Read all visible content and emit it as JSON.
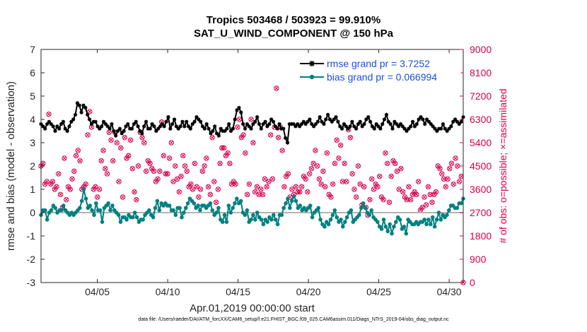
{
  "chart_data": {
    "type": "line",
    "title": "Tropics 503468 / 503923 = 99.910%",
    "subtitle": "SAT_U_WIND_COMPONENT @ 150 hPa",
    "xlabel": "Apr.01,2019 00:00:00 start",
    "ylabel": "rmse and bias (model - observation)",
    "ylabel_right": "# of obs: o=possible; ×=assimilated",
    "footer": "data file: /Users/raeder/DAI/ATM_forcXX/CAM6_setup/f.e21.FHIST_BGC.f09_025.CAM6assim.011/Diags_NTrS_2019-04/obs_diag_output.nc",
    "x_tick_labels": [
      "04/05",
      "04/10",
      "04/15",
      "04/20",
      "04/25",
      "04/30"
    ],
    "x_tick_days": [
      5,
      10,
      15,
      20,
      25,
      30
    ],
    "xlim": [
      1,
      31
    ],
    "ylim": [
      -3,
      7
    ],
    "y_ticks": [
      "-3",
      "-2",
      "-1",
      "0",
      "1",
      "2",
      "3",
      "4",
      "5",
      "6",
      "7"
    ],
    "ylim_right": [
      0,
      9000
    ],
    "y_ticks_right": [
      "0",
      "900",
      "1800",
      "2700",
      "3600",
      "4500",
      "5400",
      "6300",
      "7200",
      "8100",
      "9000"
    ],
    "zero_line": 0,
    "colors": {
      "rmse": "#000000",
      "bias": "#008080",
      "obs": "#d6004f",
      "zero": "#b3b3b3"
    },
    "series": [
      {
        "name": "rmse grand pr = 3.7252",
        "axis": "left",
        "values": [
          3.8,
          3.7,
          3.6,
          3.8,
          3.9,
          3.8,
          3.7,
          3.5,
          3.7,
          3.6,
          3.8,
          3.9,
          3.6,
          3.5,
          3.7,
          3.9,
          4.0,
          4.2,
          4.7,
          4.6,
          4.3,
          4.6,
          4.5,
          4.2,
          4.0,
          3.8,
          3.9,
          3.9,
          3.7,
          3.6,
          3.7,
          3.9,
          3.8,
          3.7,
          3.6,
          3.8,
          3.5,
          3.3,
          3.5,
          3.6,
          3.4,
          3.5,
          3.7,
          3.8,
          3.6,
          3.6,
          3.8,
          3.9,
          3.7,
          3.5,
          3.4,
          3.7,
          3.9,
          3.6,
          3.6,
          3.8,
          3.7,
          3.5,
          3.6,
          3.7,
          3.8,
          3.7,
          3.9,
          4.1,
          3.6,
          3.8,
          4.0,
          3.7,
          3.6,
          3.7,
          3.9,
          3.7,
          3.9,
          3.7,
          3.6,
          3.8,
          3.9,
          4.1,
          4.0,
          3.9,
          3.7,
          3.6,
          3.8,
          3.6,
          3.4,
          3.5,
          3.7,
          3.4,
          3.3,
          3.6,
          3.5,
          3.5,
          3.6,
          3.8,
          3.5,
          3.6,
          4.0,
          4.4,
          4.5,
          4.3,
          3.8,
          3.6,
          3.8,
          3.7,
          3.6,
          3.8,
          3.9,
          4.1,
          3.8,
          3.6,
          3.8,
          3.9,
          3.7,
          3.8,
          4.0,
          3.9,
          3.7,
          3.6,
          3.8,
          3.6,
          3.6,
          3.2,
          3.0,
          3.8,
          3.8,
          3.8,
          3.7,
          3.8,
          3.7,
          3.8,
          3.9,
          3.8,
          3.9,
          4.0,
          3.8,
          3.7,
          3.8,
          3.9,
          4.1,
          3.9,
          3.8,
          4.0,
          4.2,
          4.0,
          3.9,
          4.0,
          4.1,
          3.9,
          3.7,
          3.6,
          3.8,
          3.7,
          3.6,
          3.7,
          3.9,
          3.7,
          3.6,
          3.8,
          3.9,
          3.7,
          3.8,
          4.0,
          4.1,
          3.9,
          3.7,
          3.6,
          3.8,
          3.7,
          3.6,
          3.8,
          4.0,
          4.2,
          3.9,
          3.8,
          3.6,
          3.9,
          3.8,
          3.7,
          3.8,
          3.7,
          3.6,
          3.5,
          3.6,
          3.7,
          3.9,
          3.7,
          3.8,
          4.0,
          4.1,
          4.0,
          3.8,
          4.0,
          3.9,
          3.8,
          3.7,
          3.6,
          3.5,
          3.6,
          3.6,
          3.8,
          3.6,
          3.5,
          3.6,
          3.7,
          3.9,
          4.0,
          3.9,
          3.8,
          3.9,
          4.1
        ]
      },
      {
        "name": "bias grand pr = 0.066994",
        "axis": "left",
        "values": [
          -0.1,
          0.1,
          0.1,
          -0.3,
          0.0,
          0.1,
          0.3,
          0.2,
          0.0,
          0.1,
          0.1,
          0.3,
          0.1,
          0.0,
          -0.1,
          0.0,
          -0.1,
          0.0,
          0.1,
          0.2,
          0.5,
          1.0,
          0.6,
          0.2,
          0.3,
          0.1,
          -0.1,
          0.4,
          0.1,
          0.1,
          -0.4,
          0.2,
          0.3,
          0.4,
          0.1,
          0.3,
          0.1,
          0.0,
          -0.1,
          -0.4,
          -0.2,
          -0.2,
          -0.3,
          -0.1,
          -0.2,
          -0.2,
          0.0,
          -0.2,
          -0.4,
          -0.3,
          -0.3,
          -0.1,
          0.0,
          0.1,
          -0.1,
          -0.2,
          0.2,
          0.5,
          0.1,
          0.4,
          0.3,
          0.4,
          0.3,
          0.3,
          0.1,
          0.1,
          -0.1,
          0.2,
          0.2,
          -0.2,
          0.0,
          0.2,
          0.4,
          0.6,
          0.5,
          0.4,
          0.2,
          0.3,
          0.1,
          0.3,
          0.3,
          0.2,
          0.3,
          0.4,
          0.1,
          -0.1,
          0.0,
          0.2,
          -0.3,
          -0.4,
          -0.1,
          -0.4,
          0.3,
          0.0,
          0.2,
          0.4,
          0.6,
          0.4,
          0.5,
          0.0,
          -0.1,
          0.1,
          -0.4,
          -0.3,
          -0.1,
          -0.3,
          0.0,
          -0.2,
          -0.3,
          -0.5,
          -0.3,
          -0.4,
          -0.2,
          -0.3,
          -0.1,
          -0.3,
          -0.5,
          -0.1,
          -0.1,
          0.2,
          0.4,
          0.6,
          0.2,
          0.5,
          0.7,
          0.5,
          0.2,
          0.3,
          0.1,
          0.2,
          0.1,
          0.2,
          0.3,
          -0.2,
          0.0,
          0.1,
          0.2,
          -0.3,
          -0.5,
          -0.6,
          -0.4,
          -0.5,
          -0.3,
          -0.1,
          0.1,
          -0.2,
          -0.4,
          -0.3,
          -0.6,
          -0.4,
          -0.2,
          0.0,
          0.1,
          -0.4,
          -0.3,
          -0.2,
          -0.1,
          0.2,
          0.4,
          0.2,
          0.0,
          -0.1,
          0.1,
          -0.2,
          -0.3,
          -0.4,
          -0.6,
          -0.7,
          -0.3,
          -0.6,
          -0.8,
          -0.5,
          -0.9,
          -0.6,
          -0.4,
          -0.2,
          -0.3,
          -0.7,
          -0.6,
          -0.9,
          -0.3,
          -0.4,
          -0.5,
          -0.5,
          -0.4,
          -0.5,
          -0.4,
          -0.4,
          -0.3,
          -0.5,
          -0.3,
          -0.5,
          -0.2,
          -0.6,
          -0.3,
          0.0,
          -0.3,
          -0.1,
          -0.2,
          -0.1,
          0.1,
          0.3,
          0.3,
          0.2,
          0.2,
          0.4,
          0.4,
          0.6
        ]
      }
    ],
    "obs_series": {
      "name": "# of obs",
      "axis": "right",
      "markers": "o (possible) with × (assimilated) overlaid",
      "values": [
        4500,
        4600,
        3800,
        3900,
        6500,
        3800,
        3900,
        3600,
        3700,
        4200,
        3400,
        2900,
        4800,
        3200,
        3700,
        3600,
        4000,
        4300,
        4900,
        5100,
        4700,
        3600,
        3700,
        3800,
        5700,
        6600,
        6000,
        3600,
        3700,
        3300,
        3600,
        4700,
        5100,
        4400,
        4200,
        5800,
        5500,
        4700,
        5800,
        5400,
        3900,
        5200,
        3300,
        5600,
        4800,
        4900,
        5500,
        4400,
        3500,
        3200,
        4500,
        5800,
        5600,
        5400,
        4300,
        4700,
        4600,
        4400,
        4300,
        3900,
        4000,
        4300,
        6200,
        4900,
        4200,
        4200,
        4800,
        5400,
        3900,
        4500,
        4000,
        3500,
        4100,
        4900,
        4500,
        4300,
        3700,
        3800,
        3600,
        4600,
        3700,
        3300,
        3600,
        4300,
        4500,
        4800,
        3700,
        3400,
        5600,
        3900,
        3100,
        3600,
        4600,
        5200,
        5200,
        4900,
        5000,
        4600,
        3800,
        3900,
        3800,
        6000,
        6300,
        5600,
        5700,
        5000,
        3400,
        3800,
        6300,
        5400,
        3500,
        3700,
        3400,
        3600,
        3400,
        4000,
        3700,
        3900,
        5700,
        4000,
        6000,
        7500,
        5600,
        6000,
        5100,
        3700,
        4100,
        4200,
        3300,
        3600,
        3400,
        3700,
        3500,
        3500,
        3700,
        4100,
        4000,
        3500,
        4200,
        4400,
        4600,
        5100,
        4500,
        4000,
        3800,
        4300,
        3700,
        5000,
        3400,
        3300,
        3800,
        4600,
        5500,
        4800,
        5300,
        3900,
        4600,
        3900,
        5900,
        5600,
        4200,
        3600,
        3300,
        4500,
        3800,
        3000,
        3700,
        2900,
        2600,
        3200,
        4000,
        3600,
        3800,
        3700,
        4100,
        3300,
        3200,
        5000,
        4600,
        3100,
        4100,
        4700,
        4600,
        4300,
        3600,
        4400,
        3500,
        3300,
        3200,
        3700,
        3200,
        3400,
        3500,
        3400,
        3900,
        2800,
        2900,
        3300,
        3000,
        3700,
        3400,
        3100,
        3400,
        3500,
        4500,
        4400,
        4200,
        4000,
        3700,
        4000,
        4400,
        4600,
        3800,
        4800,
        4500,
        3900,
        4100,
        0
      ]
    }
  }
}
